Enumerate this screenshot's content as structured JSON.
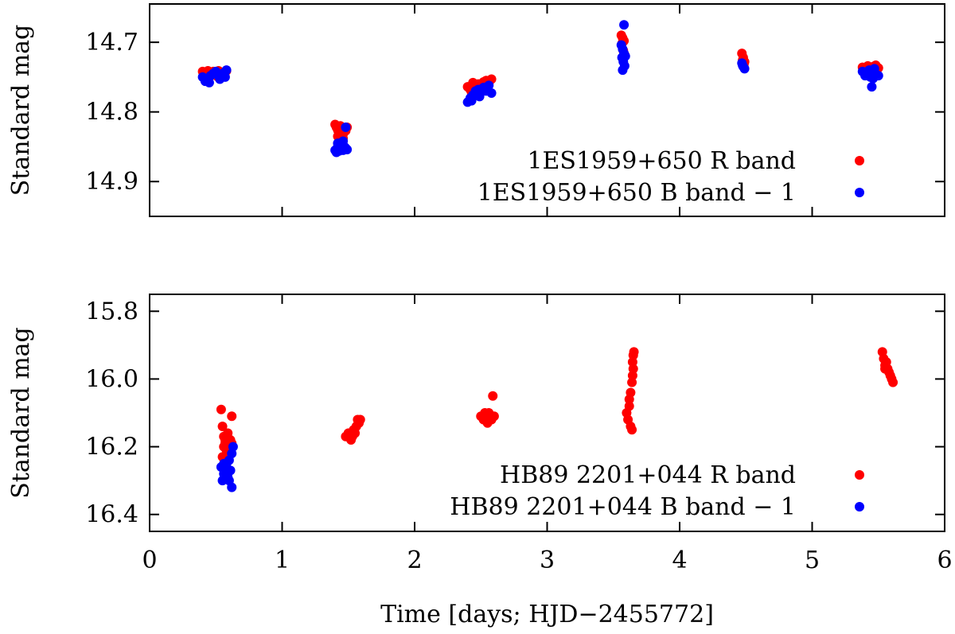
{
  "chart_data": [
    {
      "type": "scatter",
      "ylabel": "Standard mag",
      "ylim": [
        14.95,
        14.645
      ],
      "y_inverted": true,
      "yticks": [
        14.7,
        14.8,
        14.9
      ],
      "xlim": [
        0,
        6
      ],
      "grid": false,
      "legend_position": "bottom-right",
      "series": [
        {
          "name": "1ES1959+650 R band",
          "color": "#ff0000",
          "points": [
            [
              0.4,
              14.742
            ],
            [
              0.42,
              14.745
            ],
            [
              0.44,
              14.741
            ],
            [
              0.46,
              14.744
            ],
            [
              0.48,
              14.742
            ],
            [
              0.5,
              14.746
            ],
            [
              0.52,
              14.741
            ],
            [
              0.54,
              14.743
            ],
            [
              0.56,
              14.745
            ],
            [
              0.58,
              14.741
            ],
            [
              0.43,
              14.748
            ],
            [
              0.51,
              14.749
            ],
            [
              1.4,
              14.818
            ],
            [
              1.41,
              14.822
            ],
            [
              1.42,
              14.826
            ],
            [
              1.43,
              14.83
            ],
            [
              1.44,
              14.82
            ],
            [
              1.45,
              14.828
            ],
            [
              1.46,
              14.832
            ],
            [
              1.47,
              14.824
            ],
            [
              1.48,
              14.827
            ],
            [
              1.49,
              14.822
            ],
            [
              1.42,
              14.835
            ],
            [
              1.46,
              14.838
            ],
            [
              2.4,
              14.764
            ],
            [
              2.42,
              14.768
            ],
            [
              2.44,
              14.758
            ],
            [
              2.46,
              14.762
            ],
            [
              2.48,
              14.76
            ],
            [
              2.5,
              14.765
            ],
            [
              2.52,
              14.757
            ],
            [
              2.54,
              14.755
            ],
            [
              2.56,
              14.76
            ],
            [
              2.58,
              14.753
            ],
            [
              2.43,
              14.772
            ],
            [
              2.51,
              14.77
            ],
            [
              3.56,
              14.69
            ],
            [
              3.57,
              14.694
            ],
            [
              3.58,
              14.698
            ],
            [
              3.565,
              14.702
            ],
            [
              3.575,
              14.712
            ],
            [
              3.585,
              14.718
            ],
            [
              4.47,
              14.716
            ],
            [
              4.48,
              14.722
            ],
            [
              4.49,
              14.728
            ],
            [
              4.475,
              14.726
            ],
            [
              4.485,
              14.732
            ],
            [
              5.38,
              14.736
            ],
            [
              5.4,
              14.738
            ],
            [
              5.42,
              14.734
            ],
            [
              5.44,
              14.74
            ],
            [
              5.46,
              14.735
            ],
            [
              5.48,
              14.733
            ],
            [
              5.5,
              14.737
            ],
            [
              5.43,
              14.744
            ],
            [
              5.47,
              14.742
            ]
          ]
        },
        {
          "name": "1ES1959+650 B band − 1",
          "color": "#0000ff",
          "points": [
            [
              0.4,
              14.75
            ],
            [
              0.42,
              14.756
            ],
            [
              0.44,
              14.752
            ],
            [
              0.46,
              14.748
            ],
            [
              0.48,
              14.745
            ],
            [
              0.5,
              14.742
            ],
            [
              0.52,
              14.748
            ],
            [
              0.54,
              14.746
            ],
            [
              0.56,
              14.744
            ],
            [
              0.58,
              14.74
            ],
            [
              0.45,
              14.758
            ],
            [
              0.53,
              14.753
            ],
            [
              0.57,
              14.75
            ],
            [
              1.4,
              14.855
            ],
            [
              1.41,
              14.858
            ],
            [
              1.42,
              14.85
            ],
            [
              1.43,
              14.856
            ],
            [
              1.44,
              14.852
            ],
            [
              1.45,
              14.848
            ],
            [
              1.46,
              14.855
            ],
            [
              1.47,
              14.85
            ],
            [
              1.48,
              14.852
            ],
            [
              1.49,
              14.854
            ],
            [
              1.42,
              14.845
            ],
            [
              1.46,
              14.842
            ],
            [
              1.48,
              14.822
            ],
            [
              2.4,
              14.786
            ],
            [
              2.42,
              14.78
            ],
            [
              2.44,
              14.776
            ],
            [
              2.46,
              14.77
            ],
            [
              2.48,
              14.768
            ],
            [
              2.5,
              14.772
            ],
            [
              2.52,
              14.765
            ],
            [
              2.54,
              14.77
            ],
            [
              2.56,
              14.762
            ],
            [
              2.58,
              14.773
            ],
            [
              2.43,
              14.784
            ],
            [
              2.49,
              14.778
            ],
            [
              3.56,
              14.704
            ],
            [
              3.57,
              14.71
            ],
            [
              3.58,
              14.716
            ],
            [
              3.565,
              14.722
            ],
            [
              3.575,
              14.728
            ],
            [
              3.585,
              14.734
            ],
            [
              3.57,
              14.74
            ],
            [
              3.58,
              14.675
            ],
            [
              3.59,
              14.72
            ],
            [
              4.47,
              14.73
            ],
            [
              4.48,
              14.735
            ],
            [
              4.49,
              14.738
            ],
            [
              4.475,
              14.733
            ],
            [
              5.38,
              14.742
            ],
            [
              5.4,
              14.748
            ],
            [
              5.42,
              14.744
            ],
            [
              5.44,
              14.75
            ],
            [
              5.46,
              14.752
            ],
            [
              5.48,
              14.746
            ],
            [
              5.5,
              14.748
            ],
            [
              5.45,
              14.764
            ],
            [
              5.43,
              14.74
            ],
            [
              5.47,
              14.738
            ]
          ]
        }
      ]
    },
    {
      "type": "scatter",
      "ylabel": "Standard mag",
      "xlabel": "Time [days; HJD−2455772]",
      "ylim": [
        16.45,
        15.75
      ],
      "y_inverted": true,
      "yticks": [
        15.8,
        16.0,
        16.2,
        16.4
      ],
      "xlim": [
        0,
        6
      ],
      "xticks": [
        0,
        1,
        2,
        3,
        4,
        5,
        6
      ],
      "grid": false,
      "legend_position": "bottom-right",
      "series": [
        {
          "name": "HB89 2201+044 R band",
          "color": "#ff0000",
          "points": [
            [
              0.54,
              16.09
            ],
            [
              0.55,
              16.14
            ],
            [
              0.56,
              16.17
            ],
            [
              0.57,
              16.19
            ],
            [
              0.58,
              16.21
            ],
            [
              0.59,
              16.16
            ],
            [
              0.6,
              16.2
            ],
            [
              0.61,
              16.18
            ],
            [
              0.62,
              16.11
            ],
            [
              0.55,
              16.23
            ],
            [
              0.57,
              16.18
            ],
            [
              0.58,
              16.24
            ],
            [
              0.6,
              16.22
            ],
            [
              0.56,
              16.2
            ],
            [
              0.62,
              16.19
            ],
            [
              1.48,
              16.17
            ],
            [
              1.5,
              16.16
            ],
            [
              1.52,
              16.18
            ],
            [
              1.54,
              16.15
            ],
            [
              1.55,
              16.16
            ],
            [
              1.56,
              16.14
            ],
            [
              1.57,
              16.12
            ],
            [
              1.58,
              16.13
            ],
            [
              1.59,
              16.12
            ],
            [
              1.53,
              16.17
            ],
            [
              2.5,
              16.11
            ],
            [
              2.52,
              16.12
            ],
            [
              2.54,
              16.11
            ],
            [
              2.55,
              16.13
            ],
            [
              2.56,
              16.1
            ],
            [
              2.57,
              16.11
            ],
            [
              2.58,
              16.12
            ],
            [
              2.59,
              16.05
            ],
            [
              2.6,
              16.11
            ],
            [
              2.53,
              16.1
            ],
            [
              3.6,
              16.1
            ],
            [
              3.61,
              16.12
            ],
            [
              3.62,
              16.08
            ],
            [
              3.63,
              16.14
            ],
            [
              3.64,
              16.15
            ],
            [
              3.62,
              16.06
            ],
            [
              3.63,
              16.04
            ],
            [
              3.64,
              16.01
            ],
            [
              3.645,
              15.99
            ],
            [
              3.65,
              15.97
            ],
            [
              3.645,
              15.95
            ],
            [
              3.65,
              15.93
            ],
            [
              3.655,
              15.92
            ],
            [
              5.53,
              15.92
            ],
            [
              5.54,
              15.94
            ],
            [
              5.55,
              15.96
            ],
            [
              5.56,
              15.95
            ],
            [
              5.57,
              15.97
            ],
            [
              5.58,
              15.98
            ],
            [
              5.59,
              15.99
            ],
            [
              5.6,
              16.0
            ],
            [
              5.61,
              16.01
            ],
            [
              5.55,
              15.97
            ]
          ]
        },
        {
          "name": "HB89 2201+044 B band − 1",
          "color": "#0000ff",
          "points": [
            [
              0.54,
              16.26
            ],
            [
              0.55,
              16.3
            ],
            [
              0.56,
              16.28
            ],
            [
              0.57,
              16.27
            ],
            [
              0.58,
              16.25
            ],
            [
              0.59,
              16.29
            ],
            [
              0.6,
              16.24
            ],
            [
              0.61,
              16.27
            ],
            [
              0.62,
              16.22
            ],
            [
              0.63,
              16.2
            ],
            [
              0.62,
              16.32
            ],
            [
              0.6,
              16.3
            ],
            [
              0.56,
              16.25
            ],
            [
              0.58,
              16.29
            ]
          ]
        }
      ]
    }
  ]
}
